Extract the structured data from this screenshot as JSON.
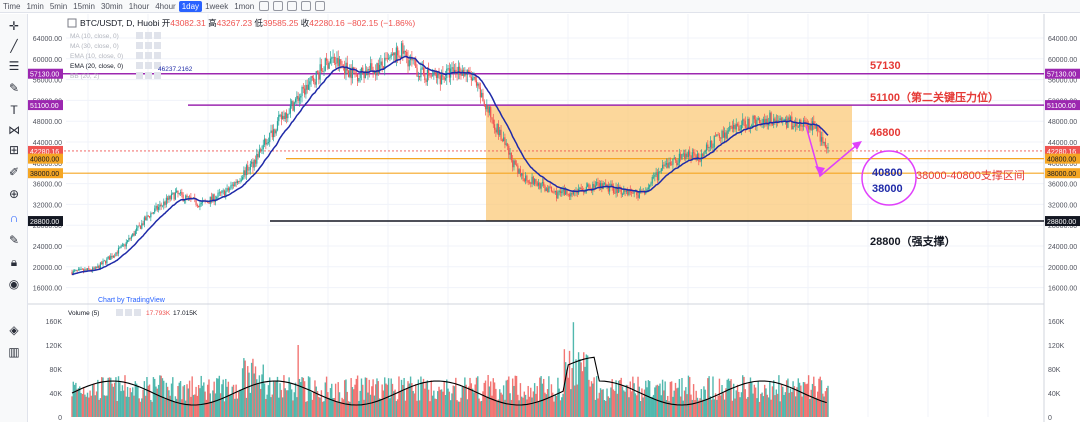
{
  "toolbar": {
    "timeframes": [
      "Time",
      "1min",
      "5min",
      "15min",
      "30min",
      "1hour",
      "4hour",
      "1day",
      "1week",
      "1mon"
    ],
    "active_timeframe": "1day"
  },
  "legend": {
    "symbol": "BTC/USDT, D, Huobi",
    "open_label": "开",
    "open": "43082.31",
    "high_label": "高",
    "high": "43267.23",
    "low_label": "低",
    "low": "39585.25",
    "close_label": "收",
    "close": "42280.16",
    "change": "−802.15 (−1.86%)",
    "indicators": [
      "MA (10, close, 0)",
      "MA (30, close, 0)",
      "EMA (10, close, 0)",
      "EMA (20, close, 0)",
      "BB (20, 2)"
    ],
    "ema_value": "46237.2162",
    "watermark": "Chart by TradingView",
    "volume_label": "Volume (5)",
    "volume_value1": "17.793K",
    "volume_value2": "17.015K"
  },
  "price_axis": [
    "64000.00",
    "60000.00",
    "56000.00",
    "52000.00",
    "48000.00",
    "44000.00",
    "40000.00",
    "36000.00",
    "32000.00",
    "28000.00",
    "24000.00",
    "20000.00",
    "16000.00"
  ],
  "volume_axis": [
    "160K",
    "120K",
    "80K",
    "40K",
    "0"
  ],
  "price_tags": [
    {
      "label": "57130.00",
      "price": 57130,
      "color": "#9c27b0"
    },
    {
      "label": "51100.00",
      "price": 51100,
      "color": "#9c27b0"
    },
    {
      "label": "42280.16",
      "price": 42280,
      "color": "#ef5350"
    },
    {
      "label": "40800.00",
      "price": 40800,
      "color": "#f5a623"
    },
    {
      "label": "38000.00",
      "price": 38000,
      "color": "#f5a623"
    },
    {
      "label": "28800.00",
      "price": 28800,
      "color": "#131722"
    }
  ],
  "annotations": {
    "r1": "57130",
    "r2": "51100（第二关键压力位）",
    "target": "46800",
    "s_high": "40800",
    "s_low": "38000",
    "s_text": "38000-40800支撑区间",
    "strong": "28800（强支撑）"
  },
  "colors": {
    "up": "#26a69a",
    "down": "#ef5350",
    "ema": "#1f2aa8",
    "resistance": "#9c27b0",
    "support": "#f5a623",
    "zone": "#fbc97a",
    "annotation_red": "#e53935",
    "arrow": "#e040fb"
  }
}
